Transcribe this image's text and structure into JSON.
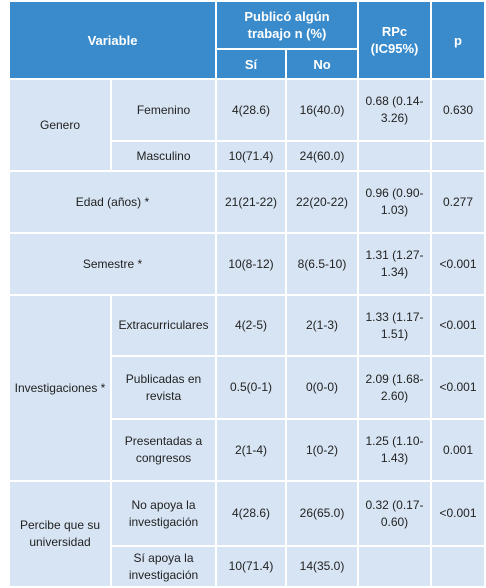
{
  "table": {
    "headers": {
      "variable": "Variable",
      "published": "Publicó algún trabajo n (%)",
      "rpc": "RPc (IC95%)",
      "p": "p",
      "yes": "Sí",
      "no": "No"
    },
    "groups": [
      {
        "variable": "Genero",
        "rows": [
          {
            "level": "Femenino",
            "yes": "4(28.6)",
            "no": "16(40.0)",
            "rpc": "0.68 (0.14-3.26)",
            "p": "0.630"
          },
          {
            "level": "Masculino",
            "yes": "10(71.4)",
            "no": "24(60.0)"
          }
        ]
      },
      {
        "variable": "Edad (años) *",
        "rows": [
          {
            "yes": "21(21-22)",
            "no": "22(20-22)",
            "rpc": "0.96 (0.90-1.03)",
            "p": "0.277"
          }
        ]
      },
      {
        "variable": "Semestre *",
        "rows": [
          {
            "yes": "10(8-12)",
            "no": "8(6.5-10)",
            "rpc": "1.31 (1.27-1.34)",
            "p": "<0.001"
          }
        ]
      },
      {
        "variable": "Investigaciones *",
        "rows": [
          {
            "level": "Extracurriculares",
            "yes": "4(2-5)",
            "no": "2(1-3)",
            "rpc": "1.33 (1.17-1.51)",
            "p": "<0.001"
          },
          {
            "level": "Publicadas en revista",
            "yes": "0.5(0-1)",
            "no": "0(0-0)",
            "rpc": "2.09 (1.68-2.60)",
            "p": "<0.001"
          },
          {
            "level": "Presentadas a congresos",
            "yes": "2(1-4)",
            "no": "1(0-2)",
            "rpc": "1.25 (1.10-1.43)",
            "p": "0.001"
          }
        ]
      },
      {
        "variable": "Percibe que su universidad",
        "rows": [
          {
            "level": "No apoya la investigación",
            "yes": "4(28.6)",
            "no": "26(65.0)",
            "rpc": "0.32 (0.17-0.60)",
            "p": "<0.001"
          },
          {
            "level": "Sí apoya la investigación",
            "yes": "10(71.4)",
            "no": "14(35.0)"
          }
        ]
      }
    ]
  }
}
